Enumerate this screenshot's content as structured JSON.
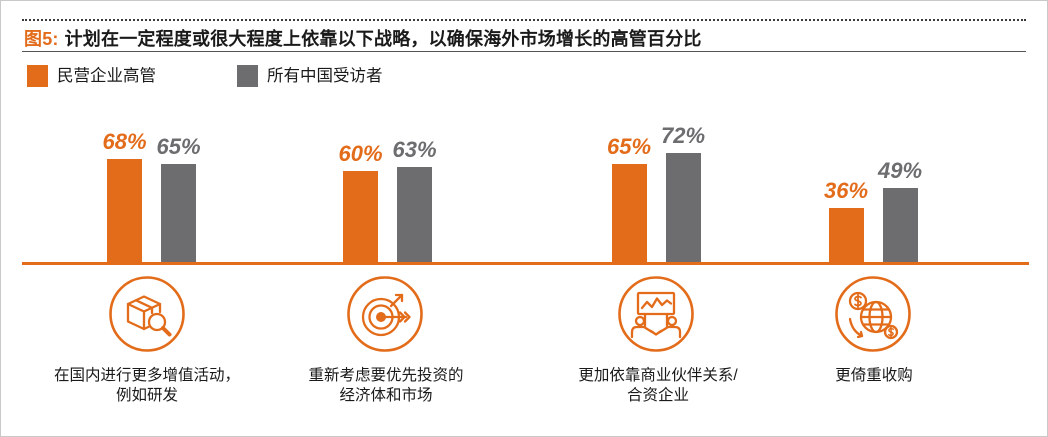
{
  "colors": {
    "accent": "#e36c1b"
  },
  "chart_data": {
    "type": "bar",
    "figure_label": "图5:",
    "title": "计划在一定程度或很大程度上依靠以下战略，以确保海外市场增长的高管百分比",
    "categories": [
      "在国内进行更多增值活动，\n例如研发",
      "重新考虑要优先投资的\n经济体和市场",
      "更加依靠商业伙伴关系/\n合资企业",
      "更倚重收购"
    ],
    "category_icons": [
      "box-search-icon",
      "target-arrow-icon",
      "partnership-board-icon",
      "globe-dollar-icon"
    ],
    "series": [
      {
        "name": "民营企业高管",
        "color": "#e36c1b",
        "values": [
          68,
          60,
          65,
          36
        ],
        "labels": [
          "68%",
          "60%",
          "65%",
          "36%"
        ]
      },
      {
        "name": "所有中国受访者",
        "color": "#6d6d6f",
        "values": [
          65,
          63,
          72,
          49
        ],
        "labels": [
          "65%",
          "63%",
          "72%",
          "49%"
        ]
      }
    ],
    "ylim": [
      0,
      100
    ],
    "grid": false,
    "legend": "top-left"
  }
}
